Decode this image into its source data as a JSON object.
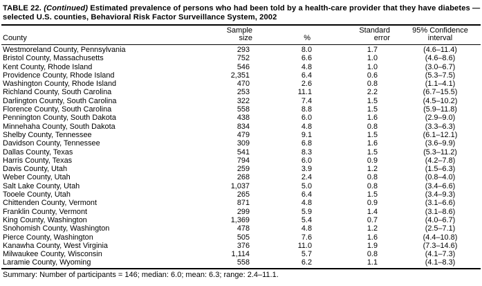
{
  "page": {
    "title": {
      "prefix": "TABLE 22. ",
      "continued": "(Continued)",
      "line1_rest": " Estimated prevalence of persons who had been told by a health-care provider that they have diabetes —",
      "line2": "selected U.S. counties, Behavioral Risk Factor Surveillance System, 2002"
    },
    "columns": {
      "county": {
        "line1": "",
        "line2": "County"
      },
      "sample": {
        "line1": "Sample",
        "line2": "size"
      },
      "pct": {
        "line1": "",
        "line2": "%"
      },
      "se": {
        "line1": "Standard",
        "line2": "error"
      },
      "ci": {
        "line1": "95% Confidence",
        "line2": "interval"
      }
    },
    "summary": "Summary: Number of participants = 146; median: 6.0; mean: 6.3; range: 2.4–11.1."
  },
  "chart_data": {
    "type": "table",
    "title": "TABLE 22. (Continued) Estimated prevalence of persons who had been told by a health-care provider that they have diabetes — selected U.S. counties, Behavioral Risk Factor Surveillance System, 2002",
    "columns": [
      "County",
      "Sample size",
      "%",
      "Standard error",
      "95% Confidence interval"
    ],
    "rows": [
      [
        "Westmoreland County, Pennsylvania",
        "293",
        "8.0",
        "1.7",
        "(4.6–11.4)"
      ],
      [
        "Bristol County, Massachusetts",
        "752",
        "6.6",
        "1.0",
        "(4.6–8.6)"
      ],
      [
        "Kent County, Rhode Island",
        "546",
        "4.8",
        "1.0",
        "(3.0–6.7)"
      ],
      [
        "Providence County, Rhode Island",
        "2,351",
        "6.4",
        "0.6",
        "(5.3–7.5)"
      ],
      [
        "Washington County, Rhode Island",
        "470",
        "2.6",
        "0.8",
        "(1.1–4.1)"
      ],
      [
        "Richland County, South Carolina",
        "253",
        "11.1",
        "2.2",
        "(6.7–15.5)"
      ],
      [
        "Darlington County, South Carolina",
        "322",
        "7.4",
        "1.5",
        "(4.5–10.2)"
      ],
      [
        "Florence County, South Carolina",
        "558",
        "8.8",
        "1.5",
        "(5.9–11.8)"
      ],
      [
        "Pennington County, South Dakota",
        "438",
        "6.0",
        "1.6",
        "(2.9–9.0)"
      ],
      [
        "Minnehaha County, South Dakota",
        "834",
        "4.8",
        "0.8",
        "(3.3–6.3)"
      ],
      [
        "Shelby County, Tennessee",
        "479",
        "9.1",
        "1.5",
        "(6.1–12.1)"
      ],
      [
        "Davidson County, Tennessee",
        "309",
        "6.8",
        "1.6",
        "(3.6–9.9)"
      ],
      [
        "Dallas County, Texas",
        "541",
        "8.3",
        "1.5",
        "(5.3–11.2)"
      ],
      [
        "Harris County, Texas",
        "794",
        "6.0",
        "0.9",
        "(4.2–7.8)"
      ],
      [
        "Davis County, Utah",
        "259",
        "3.9",
        "1.2",
        "(1.5–6.3)"
      ],
      [
        "Weber County, Utah",
        "268",
        "2.4",
        "0.8",
        "(0.8–4.0)"
      ],
      [
        "Salt Lake County, Utah",
        "1,037",
        "5.0",
        "0.8",
        "(3.4–6.6)"
      ],
      [
        "Tooele County, Utah",
        "265",
        "6.4",
        "1.5",
        "(3.4–9.3)"
      ],
      [
        "Chittenden County, Vermont",
        "871",
        "4.8",
        "0.9",
        "(3.1–6.6)"
      ],
      [
        "Franklin County, Vermont",
        "299",
        "5.9",
        "1.4",
        "(3.1–8.6)"
      ],
      [
        "King County, Washington",
        "1,369",
        "5.4",
        "0.7",
        "(4.0–6.7)"
      ],
      [
        "Snohomish County, Washington",
        "478",
        "4.8",
        "1.2",
        "(2.5–7.1)"
      ],
      [
        "Pierce County, Washington",
        "505",
        "7.6",
        "1.6",
        "(4.4–10.8)"
      ],
      [
        "Kanawha County, West Virginia",
        "376",
        "11.0",
        "1.9",
        "(7.3–14.6)"
      ],
      [
        "Milwaukee County, Wisconsin",
        "1,114",
        "5.7",
        "0.8",
        "(4.1–7.3)"
      ],
      [
        "Laramie County, Wyoming",
        "558",
        "6.2",
        "1.1",
        "(4.1–8.3)"
      ]
    ],
    "summary": "Summary: Number of participants = 146; median: 6.0; mean: 6.3; range: 2.4–11.1."
  }
}
